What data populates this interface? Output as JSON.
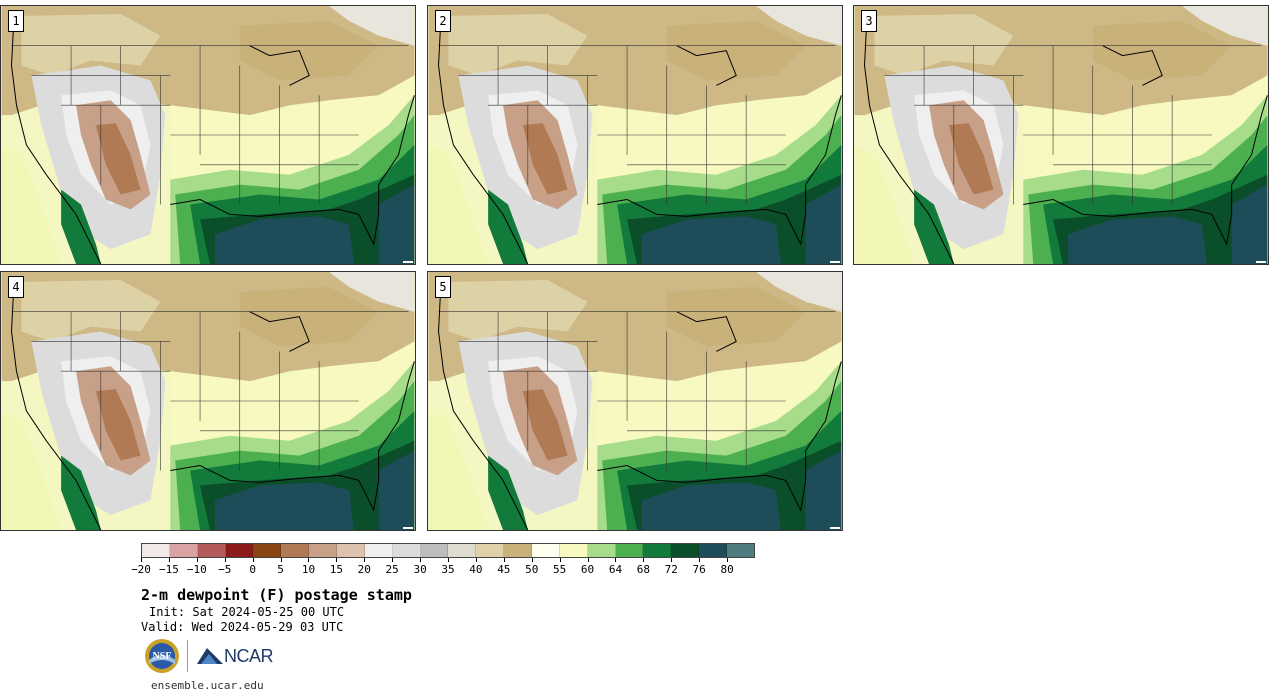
{
  "panels": [
    {
      "number": "1"
    },
    {
      "number": "2"
    },
    {
      "number": "3"
    },
    {
      "number": "4"
    },
    {
      "number": "5"
    }
  ],
  "colorbar": {
    "colors": [
      "#f2e8e8",
      "#d9a3a3",
      "#b35a5a",
      "#8c1a1a",
      "#8b4513",
      "#b07a55",
      "#c8a088",
      "#ddc2b0",
      "#efefef",
      "#dcdcdc",
      "#bdbdbd",
      "#dedbcf",
      "#e0d2a8",
      "#c9b27a",
      "#fffff0",
      "#f7f9c0",
      "#a6dc8a",
      "#4caf50",
      "#127a3a",
      "#0b4f2a",
      "#1e4d5a",
      "#4e7c7f"
    ],
    "labels": [
      "−20",
      "−15",
      "−10",
      "−5",
      "0",
      "5",
      "10",
      "15",
      "20",
      "25",
      "30",
      "35",
      "40",
      "45",
      "50",
      "55",
      "60",
      "64",
      "68",
      "72",
      "76",
      "80"
    ]
  },
  "title": "2-m dewpoint (F) postage stamp",
  "init": "Init: Sat 2024-05-25 00 UTC",
  "valid": "Valid: Wed 2024-05-29 03 UTC",
  "logos": {
    "nsf": "NSF",
    "ncar": "NCAR"
  },
  "site_url": "ensemble.ucar.edu"
}
